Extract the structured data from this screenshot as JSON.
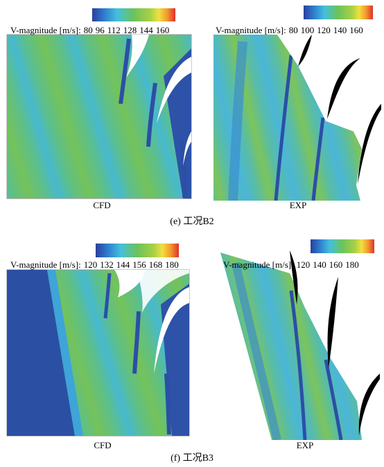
{
  "panels": [
    {
      "caption": "(e) 工况B2",
      "plots": [
        {
          "label": "CFD",
          "legend_title": "V-magnitude [m/s]:",
          "legend_ticks": [
            80,
            96,
            112,
            128,
            144,
            160
          ]
        },
        {
          "label": "EXP",
          "legend_title": "V-magnitude [m/s]:",
          "legend_ticks": [
            80,
            100,
            120,
            140,
            160
          ]
        }
      ]
    },
    {
      "caption": "(f) 工况B3",
      "plots": [
        {
          "label": "CFD",
          "legend_title": "V-magnitude [m/s]:",
          "legend_ticks": [
            120,
            132,
            144,
            156,
            168,
            180
          ]
        },
        {
          "label": "EXP",
          "legend_title": "V-magnitude [m/s]:",
          "legend_ticks": [
            120,
            140,
            160,
            180
          ]
        }
      ]
    }
  ]
}
